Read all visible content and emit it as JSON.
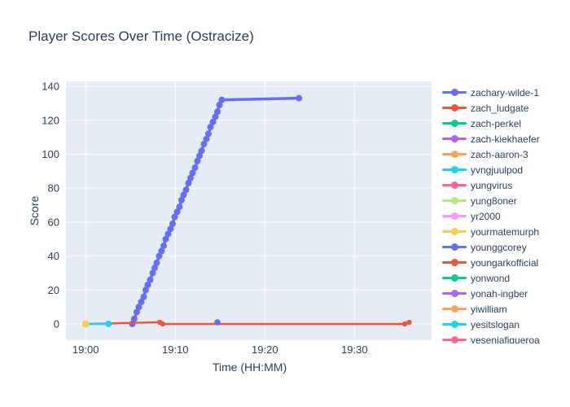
{
  "title": "Player Scores Over Time (Ostracize)",
  "colors": {
    "page_bg": "#FFFFFF",
    "plot_bg": "#E5ECF6",
    "grid": "#FFFFFF",
    "text": "#2A3F5F"
  },
  "chart_data": {
    "type": "line",
    "title": "Player Scores Over Time (Ostracize)",
    "xlabel": "Time (HH:MM)",
    "ylabel": "Score",
    "legend_position": "right",
    "grid": true,
    "x_unit": "minutes after 19:00",
    "xaxis": {
      "range": [
        -2.2,
        38.6
      ],
      "ticks": [
        {
          "t": 0,
          "label": "19:00"
        },
        {
          "t": 10,
          "label": "19:10"
        },
        {
          "t": 20,
          "label": "19:20"
        },
        {
          "t": 30,
          "label": "19:30"
        }
      ]
    },
    "yaxis": {
      "range": [
        -9.6,
        142.9
      ],
      "ticks": [
        0,
        20,
        40,
        60,
        80,
        100,
        120,
        140
      ]
    },
    "series": [
      {
        "name": "zachary-wilde-1",
        "color": "#636EFA",
        "line_width": 3.5,
        "marker_size": 4,
        "points": [
          [
            5.2,
            0
          ],
          [
            5.42,
            3
          ],
          [
            5.7,
            7
          ],
          [
            5.93,
            10
          ],
          [
            6.2,
            13
          ],
          [
            6.48,
            16
          ],
          [
            6.7,
            20
          ],
          [
            6.93,
            23
          ],
          [
            7.2,
            26
          ],
          [
            7.48,
            30
          ],
          [
            7.7,
            33
          ],
          [
            7.93,
            36
          ],
          [
            8.2,
            40
          ],
          [
            8.47,
            43
          ],
          [
            8.7,
            46
          ],
          [
            8.93,
            50
          ],
          [
            9.2,
            53
          ],
          [
            9.47,
            56
          ],
          [
            9.7,
            59
          ],
          [
            9.93,
            63
          ],
          [
            10.2,
            66
          ],
          [
            10.47,
            69
          ],
          [
            10.7,
            73
          ],
          [
            10.93,
            76
          ],
          [
            11.2,
            79
          ],
          [
            11.47,
            83
          ],
          [
            11.7,
            86
          ],
          [
            11.93,
            89
          ],
          [
            12.2,
            92
          ],
          [
            12.47,
            96
          ],
          [
            12.7,
            99
          ],
          [
            12.93,
            102
          ],
          [
            13.2,
            106
          ],
          [
            13.47,
            109
          ],
          [
            13.7,
            112
          ],
          [
            13.93,
            116
          ],
          [
            14.2,
            119
          ],
          [
            14.47,
            122
          ],
          [
            14.7,
            125
          ],
          [
            14.93,
            129
          ],
          [
            15.2,
            132
          ],
          [
            23.8,
            133
          ]
        ]
      },
      {
        "name": "zach_ludgate",
        "color": "#EF553B",
        "line_width": 2.5,
        "marker_size": 3.2,
        "points": [
          [
            0,
            0
          ],
          [
            8.27,
            1
          ],
          [
            8.6,
            0
          ],
          [
            35.6,
            0
          ],
          [
            36.1,
            1
          ]
        ]
      },
      {
        "name": "zach-perkel",
        "color": "#00CC96",
        "line_width": 2.5,
        "marker_size": 3.5,
        "points": []
      },
      {
        "name": "zach-kiekhaefer",
        "color": "#AB63FA",
        "line_width": 2.5,
        "marker_size": 3.5,
        "points": []
      },
      {
        "name": "zach-aaron-3",
        "color": "#FFA15A",
        "line_width": 2.5,
        "marker_size": 3.5,
        "points": []
      },
      {
        "name": "yvngjuulpod",
        "color": "#19D3F3",
        "line_width": 2.5,
        "marker_size": 4,
        "points": [
          [
            0,
            0
          ],
          [
            2.55,
            0
          ]
        ]
      },
      {
        "name": "yungvirus",
        "color": "#FF6692",
        "line_width": 2.5,
        "marker_size": 3.5,
        "points": []
      },
      {
        "name": "yung8oner",
        "color": "#B6E880",
        "line_width": 2.5,
        "marker_size": 3.5,
        "points": []
      },
      {
        "name": "yr2000",
        "color": "#FF97FF",
        "line_width": 2.5,
        "marker_size": 3.5,
        "points": []
      },
      {
        "name": "yourmatemurph",
        "color": "#FECB52",
        "line_width": 2.5,
        "marker_size": 4.5,
        "points": [
          [
            0,
            0
          ]
        ]
      },
      {
        "name": "younggcorey",
        "color": "#636EFA",
        "line_width": 2.5,
        "marker_size": 3.8,
        "points": [
          [
            14.7,
            1
          ]
        ]
      },
      {
        "name": "youngarkofficial",
        "color": "#EF553B",
        "line_width": 2.5,
        "marker_size": 3.5,
        "points": []
      },
      {
        "name": "yonwond",
        "color": "#00CC96",
        "line_width": 2.5,
        "marker_size": 3.5,
        "points": []
      },
      {
        "name": "yonah-ingber",
        "color": "#AB63FA",
        "line_width": 2.5,
        "marker_size": 3.5,
        "points": []
      },
      {
        "name": "yiwilliam",
        "color": "#FFA15A",
        "line_width": 2.5,
        "marker_size": 3.5,
        "points": []
      },
      {
        "name": "yesitslogan",
        "color": "#19D3F3",
        "line_width": 2.5,
        "marker_size": 3.5,
        "points": []
      },
      {
        "name": "yeseniafigueroa",
        "color": "#FF6692",
        "line_width": 2.5,
        "marker_size": 3.5,
        "points": []
      }
    ]
  }
}
